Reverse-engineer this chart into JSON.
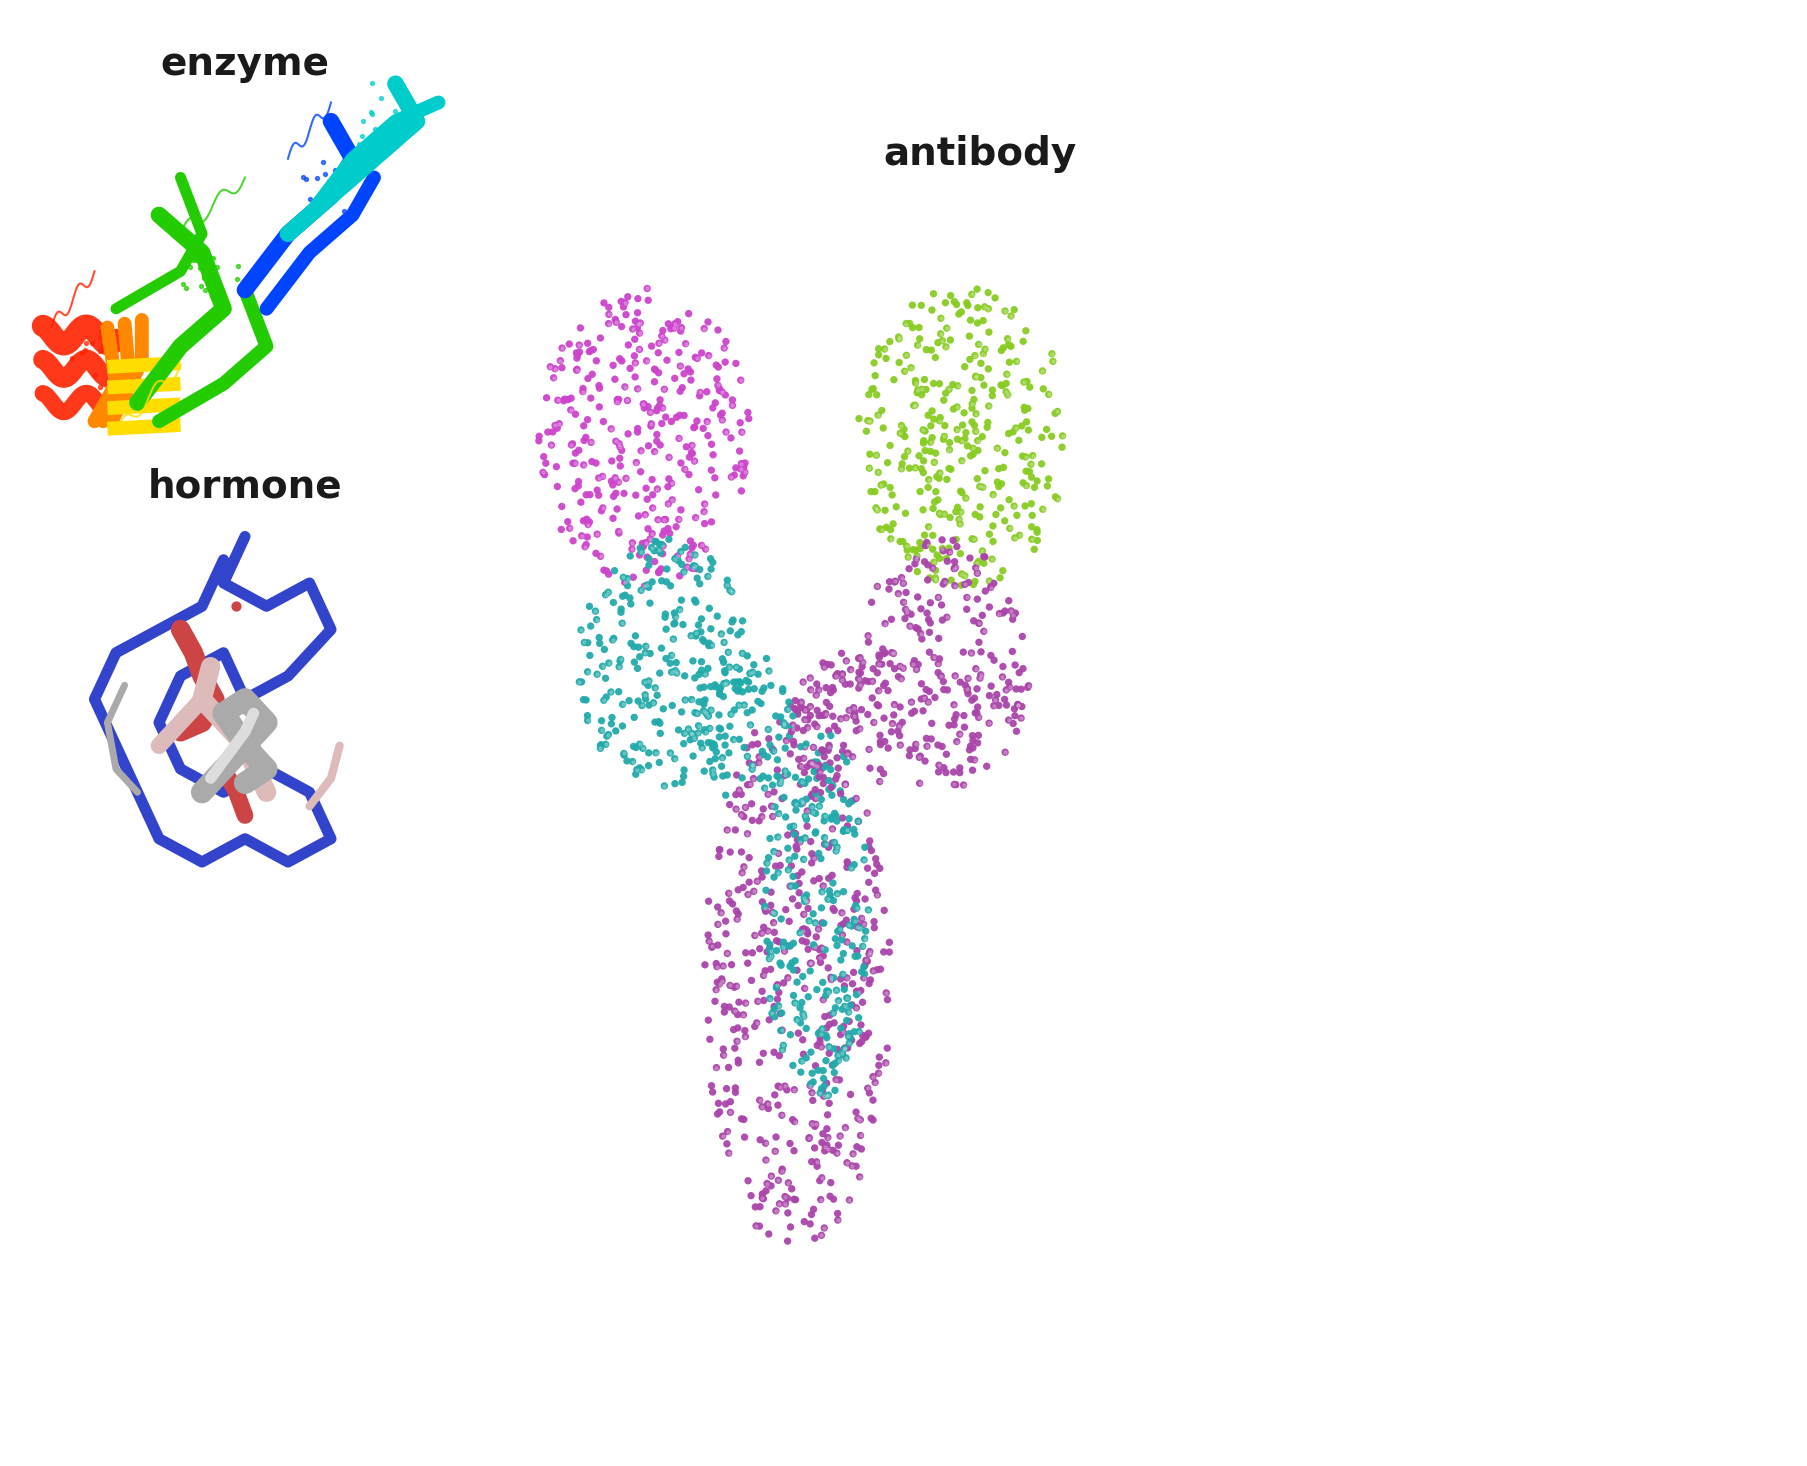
{
  "background_color": "#ffffff",
  "title_fontsize": 28,
  "title_fontweight": "bold",
  "title_color": "#1a1a1a",
  "panel_bg": "#000000",
  "enzyme_title": "enzyme",
  "hormone_title": "hormone",
  "antibody_title": "antibody",
  "enzyme_colors": [
    "#ff2200",
    "#ff8800",
    "#ffdd00",
    "#22cc00",
    "#0044ff",
    "#00cccc"
  ],
  "hormone_colors": [
    "#3344cc",
    "#cc4444",
    "#aaaaaa",
    "#ddbbbb"
  ],
  "antibody_colors": [
    "#cc44cc",
    "#22aaaa",
    "#88cc22",
    "#aa44aa"
  ]
}
